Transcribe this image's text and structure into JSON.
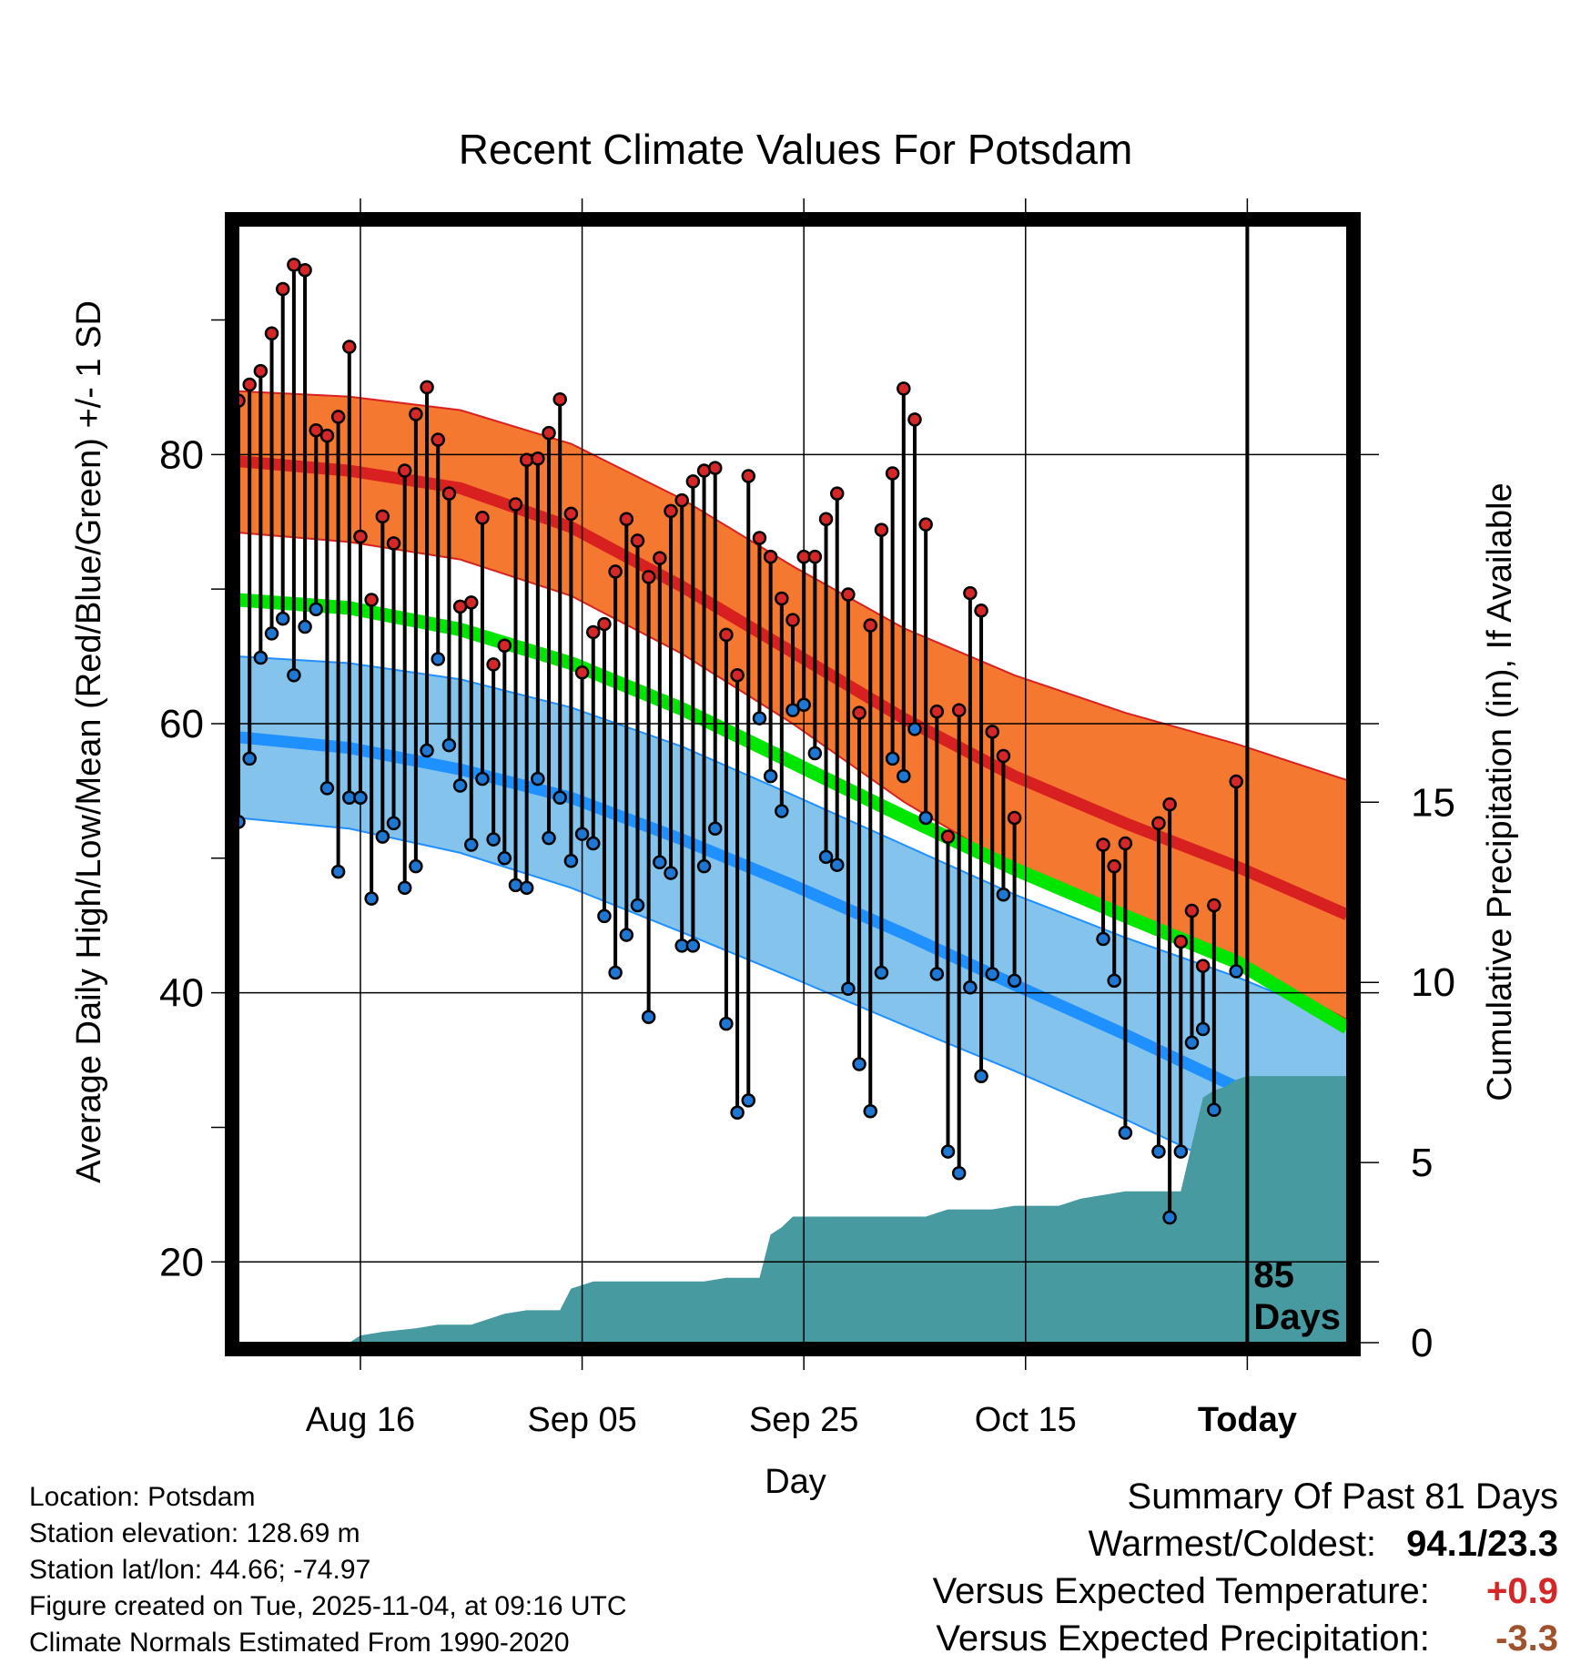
{
  "chart_data": {
    "type": "line",
    "title": "Recent Climate Values For Potsdam",
    "xlabel": "Day",
    "ylabel": "Average Daily High/Low/Mean (Red/Blue/Green) +/- 1 SD",
    "y2label": "Cumulative Precipitation (in), If Available",
    "ylim": [
      14,
      97
    ],
    "y2lim": [
      0,
      31
    ],
    "xlim": [
      0,
      100
    ],
    "x_unit": "days since Aug 5",
    "yticks": [
      20,
      40,
      60,
      80
    ],
    "y2ticks": [
      0,
      5,
      10,
      15
    ],
    "xtick_positions": [
      11,
      31,
      51,
      71,
      91
    ],
    "xtick_labels": [
      "Aug 16",
      "Sep 05",
      "Sep 25",
      "Oct 15",
      "Today"
    ],
    "today_marker": {
      "x": 91,
      "label_line1": "85",
      "label_line2": "Days"
    },
    "normals": {
      "x": [
        0,
        10,
        20,
        30,
        40,
        50,
        60,
        70,
        80,
        90,
        100
      ],
      "high_mean": [
        79.5,
        78.8,
        77.5,
        74.6,
        70.2,
        65.3,
        60.4,
        56.1,
        52.6,
        49.4,
        45.8
      ],
      "high_upper": [
        84.7,
        84.3,
        83.3,
        80.8,
        76.7,
        71.7,
        67.1,
        63.6,
        60.8,
        58.5,
        55.8
      ],
      "high_lower": [
        74.2,
        73.5,
        72.2,
        69.5,
        65.2,
        60.0,
        54.2,
        49.3,
        45.6,
        42.4,
        38.0
      ],
      "low_mean": [
        59.0,
        58.2,
        56.6,
        54.5,
        51.4,
        48.0,
        44.4,
        40.6,
        36.9,
        33.0,
        28.8
      ],
      "low_upper": [
        65.0,
        64.5,
        63.3,
        61.2,
        58.3,
        54.7,
        51.0,
        47.3,
        44.1,
        41.2,
        37.8
      ],
      "low_lower": [
        53.0,
        52.2,
        50.4,
        47.8,
        44.5,
        41.1,
        37.6,
        34.2,
        30.6,
        26.7,
        22.8
      ],
      "mean": [
        69.2,
        68.6,
        67.0,
        64.5,
        61.1,
        57.1,
        53.1,
        49.2,
        45.7,
        42.3,
        37.4
      ]
    },
    "series": [
      {
        "name": "Daily High",
        "x": [
          0,
          1,
          2,
          3,
          4,
          5,
          6,
          7,
          8,
          9,
          10,
          11,
          12,
          13,
          14,
          15,
          16,
          17,
          18,
          19,
          20,
          21,
          22,
          23,
          24,
          25,
          26,
          27,
          28,
          29,
          30,
          31,
          32,
          33,
          34,
          35,
          36,
          37,
          38,
          39,
          40,
          41,
          42,
          43,
          44,
          45,
          46,
          47,
          48,
          49,
          50,
          51,
          52,
          53,
          54,
          55,
          56,
          57,
          58,
          59,
          60,
          61,
          62,
          63,
          64,
          65,
          66,
          67,
          68,
          69,
          70,
          78,
          79,
          80,
          83,
          84,
          85,
          86,
          87,
          88,
          90
        ],
        "values": [
          84.0,
          85.2,
          86.2,
          89.0,
          92.3,
          94.1,
          93.7,
          81.8,
          81.4,
          82.8,
          88.0,
          73.9,
          69.2,
          75.4,
          73.4,
          78.8,
          83.0,
          85.0,
          81.1,
          77.1,
          68.7,
          69.0,
          75.3,
          64.4,
          65.8,
          76.3,
          79.6,
          79.7,
          81.6,
          84.1,
          75.6,
          63.8,
          66.8,
          67.4,
          71.3,
          75.2,
          73.6,
          70.9,
          72.3,
          75.8,
          76.6,
          78.0,
          78.8,
          79.0,
          66.6,
          63.6,
          78.4,
          73.8,
          72.4,
          69.3,
          67.7,
          72.4,
          72.4,
          75.2,
          77.1,
          69.6,
          60.8,
          67.3,
          74.4,
          78.6,
          84.9,
          82.6,
          74.8,
          60.9,
          51.6,
          61.0,
          69.7,
          68.4,
          59.4,
          57.6,
          53.0,
          51.0,
          49.4,
          51.1,
          52.6,
          54.0,
          43.8,
          46.1,
          42.0,
          46.5,
          55.7
        ]
      },
      {
        "name": "Daily Low",
        "x": [
          0,
          1,
          2,
          3,
          4,
          5,
          6,
          7,
          8,
          9,
          10,
          11,
          12,
          13,
          14,
          15,
          16,
          17,
          18,
          19,
          20,
          21,
          22,
          23,
          24,
          25,
          26,
          27,
          28,
          29,
          30,
          31,
          32,
          33,
          34,
          35,
          36,
          37,
          38,
          39,
          40,
          41,
          42,
          43,
          44,
          45,
          46,
          47,
          48,
          49,
          50,
          51,
          52,
          53,
          54,
          55,
          56,
          57,
          58,
          59,
          60,
          61,
          62,
          63,
          64,
          65,
          66,
          67,
          68,
          69,
          70,
          78,
          79,
          80,
          83,
          84,
          85,
          86,
          87,
          88,
          90
        ],
        "values": [
          52.7,
          57.4,
          64.9,
          66.7,
          67.8,
          63.6,
          67.2,
          68.5,
          55.2,
          49.0,
          54.5,
          54.5,
          47.0,
          51.6,
          52.6,
          47.8,
          49.4,
          58.0,
          64.8,
          58.4,
          55.4,
          51.0,
          55.9,
          51.4,
          50.0,
          48.0,
          47.8,
          55.9,
          51.5,
          54.5,
          49.8,
          51.8,
          51.1,
          45.7,
          41.5,
          44.3,
          46.5,
          38.2,
          49.7,
          48.9,
          43.5,
          43.5,
          49.4,
          52.2,
          37.7,
          31.1,
          32.0,
          60.4,
          56.1,
          53.5,
          61.0,
          61.4,
          57.8,
          50.1,
          49.5,
          40.3,
          34.7,
          31.2,
          41.5,
          57.4,
          56.1,
          59.6,
          53.0,
          41.4,
          28.2,
          26.6,
          40.4,
          33.8,
          41.4,
          47.3,
          40.9,
          44.0,
          40.9,
          29.6,
          28.2,
          23.3,
          28.2,
          36.3,
          37.3,
          31.3,
          41.6
        ]
      },
      {
        "name": "Cumulative Precipitation",
        "x": [
          0,
          10,
          11,
          13,
          16,
          18,
          21,
          24,
          26,
          28,
          29,
          30,
          31,
          32,
          34,
          36,
          38,
          40,
          42,
          44,
          46,
          47,
          48,
          49,
          50,
          52,
          54,
          56,
          58,
          60,
          62,
          63,
          64,
          66,
          68,
          70,
          72,
          74,
          76,
          78,
          80,
          82,
          84,
          85,
          86,
          87,
          88,
          89,
          90,
          91,
          100
        ],
        "values": [
          0,
          0,
          0.2,
          0.3,
          0.4,
          0.5,
          0.5,
          0.8,
          0.9,
          0.9,
          0.9,
          1.5,
          1.6,
          1.7,
          1.7,
          1.7,
          1.7,
          1.7,
          1.7,
          1.8,
          1.8,
          1.8,
          3.0,
          3.2,
          3.5,
          3.5,
          3.5,
          3.5,
          3.5,
          3.5,
          3.5,
          3.6,
          3.7,
          3.7,
          3.7,
          3.8,
          3.8,
          3.8,
          4.0,
          4.1,
          4.2,
          4.2,
          4.2,
          4.2,
          5.5,
          6.8,
          7.0,
          7.1,
          7.3,
          7.4,
          7.4
        ]
      }
    ],
    "legend": "none"
  },
  "info": {
    "location": "Location: Potsdam",
    "elevation": "Station elevation: 128.69 m",
    "latlon": "Station lat/lon: 44.66; -74.97",
    "created": "Figure created on Tue, 2025-11-04, at 09:16 UTC",
    "normals": "Climate Normals Estimated From 1990-2020"
  },
  "summary": {
    "heading": "Summary Of Past 81 Days",
    "warm_cold_label": "Warmest/Coldest:",
    "warm_cold_value": "94.1/23.3",
    "temp_label": "Versus Expected Temperature:",
    "temp_value": "+0.9",
    "precip_label": "Versus Expected Precipitation:",
    "precip_value": "-3.3"
  },
  "colors": {
    "high_band": "#f47830",
    "high_line": "#d92020",
    "low_band": "#84c3eb",
    "low_line": "#1e90ff",
    "mean_line": "#00e600",
    "precip_fill": "#469aa0",
    "high_dot": "#d62728",
    "low_dot": "#1f77d4",
    "temp_value": "#d62728",
    "precip_value": "#a0522d"
  }
}
